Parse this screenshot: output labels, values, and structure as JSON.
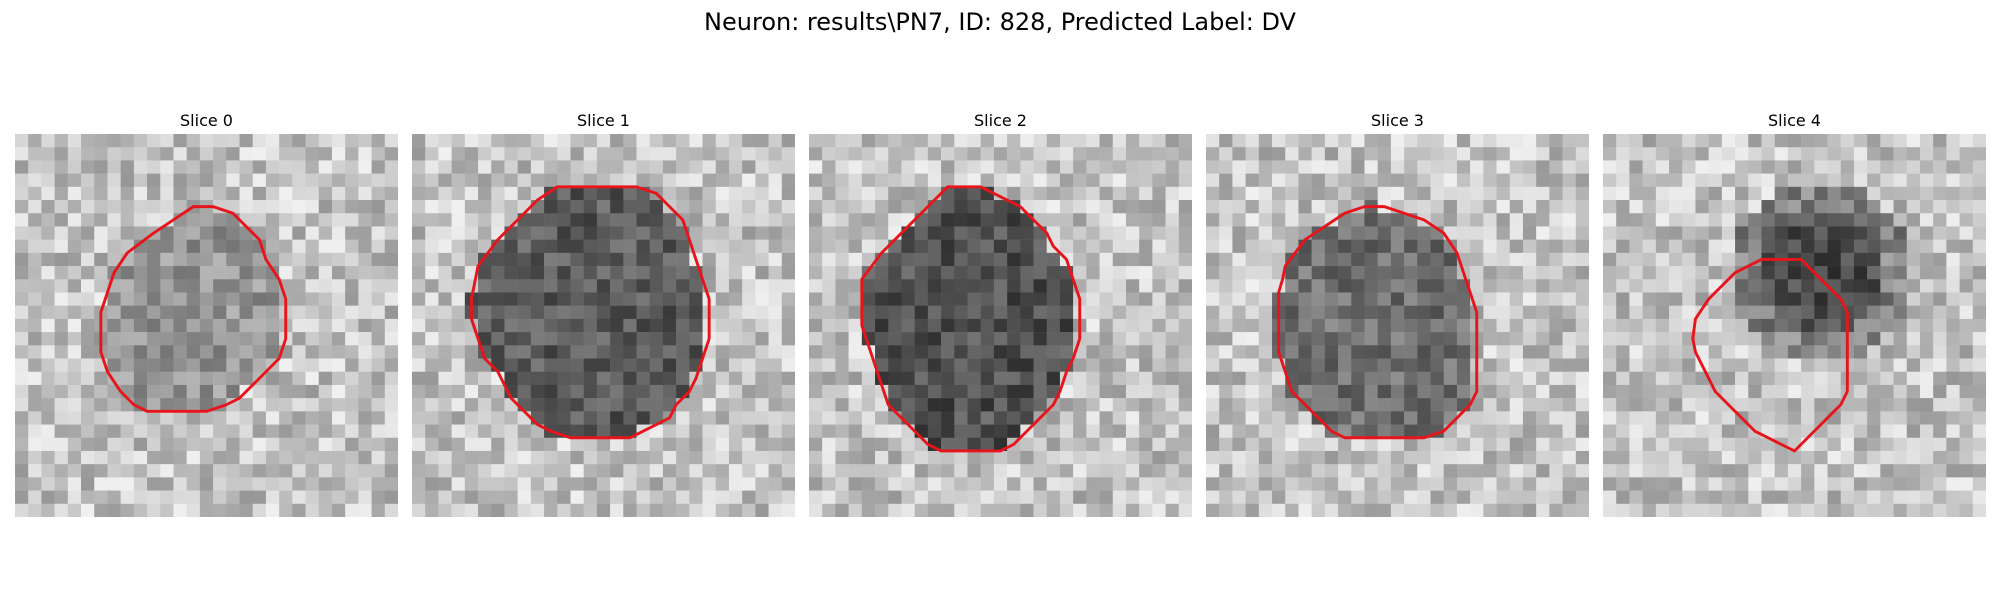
{
  "figure": {
    "title": "Neuron: results\\PN7, ID: 828, Predicted Label: DV"
  },
  "colors": {
    "contour": "#e8141c"
  },
  "panels": [
    {
      "title": "Slice 0",
      "darkness": 0.55,
      "contour": [
        [
          8.5,
          9
        ],
        [
          10.5,
          7.5
        ],
        [
          12,
          6.5
        ],
        [
          13.5,
          5.5
        ],
        [
          15,
          5.5
        ],
        [
          16.5,
          6
        ],
        [
          17.5,
          7
        ],
        [
          18.5,
          8
        ],
        [
          19,
          9.5
        ],
        [
          20,
          11
        ],
        [
          20.5,
          12.5
        ],
        [
          20.5,
          14
        ],
        [
          20.5,
          15.5
        ],
        [
          20,
          17
        ],
        [
          19,
          18
        ],
        [
          18,
          19
        ],
        [
          17,
          20
        ],
        [
          16,
          20.5
        ],
        [
          14.5,
          21
        ],
        [
          13,
          21
        ],
        [
          11.5,
          21
        ],
        [
          10,
          21
        ],
        [
          9,
          20.5
        ],
        [
          8,
          19.5
        ],
        [
          7,
          18
        ],
        [
          6.5,
          16.5
        ],
        [
          6.5,
          15
        ],
        [
          6.5,
          13.5
        ],
        [
          7,
          12
        ],
        [
          7.5,
          10.5
        ]
      ]
    },
    {
      "title": "Slice 1",
      "darkness": 0.78,
      "contour": [
        [
          5,
          10
        ],
        [
          6.5,
          8
        ],
        [
          8,
          6.5
        ],
        [
          9.5,
          5
        ],
        [
          11,
          4
        ],
        [
          13,
          4
        ],
        [
          15,
          4
        ],
        [
          17,
          4
        ],
        [
          18.5,
          4.5
        ],
        [
          19.5,
          5.5
        ],
        [
          20.5,
          6.5
        ],
        [
          21,
          8
        ],
        [
          21.5,
          9.5
        ],
        [
          22,
          11
        ],
        [
          22.5,
          12.5
        ],
        [
          22.5,
          14
        ],
        [
          22.5,
          15.5
        ],
        [
          22,
          17
        ],
        [
          21.5,
          18.5
        ],
        [
          21,
          19.5
        ],
        [
          20,
          20.5
        ],
        [
          19.5,
          21.5
        ],
        [
          18.5,
          22
        ],
        [
          17.5,
          22.5
        ],
        [
          16.5,
          23
        ],
        [
          15,
          23
        ],
        [
          13.5,
          23
        ],
        [
          12,
          23
        ],
        [
          10.5,
          22.5
        ],
        [
          9.5,
          22
        ],
        [
          8.5,
          21
        ],
        [
          7.5,
          20
        ],
        [
          7,
          19
        ],
        [
          6.5,
          18
        ],
        [
          5.5,
          17
        ],
        [
          5,
          15.5
        ],
        [
          4.5,
          14
        ],
        [
          4.5,
          12.5
        ],
        [
          4.8,
          11
        ]
      ]
    },
    {
      "title": "Slice 2",
      "darkness": 0.82,
      "contour": [
        [
          4,
          11
        ],
        [
          5.5,
          9
        ],
        [
          7,
          7.5
        ],
        [
          8.5,
          6
        ],
        [
          9.5,
          5
        ],
        [
          10.5,
          4
        ],
        [
          12,
          4
        ],
        [
          13,
          4
        ],
        [
          14,
          4.5
        ],
        [
          15,
          5
        ],
        [
          16,
          5.5
        ],
        [
          17,
          6.5
        ],
        [
          18,
          7.5
        ],
        [
          18.5,
          8.5
        ],
        [
          19.5,
          9.5
        ],
        [
          20,
          11
        ],
        [
          20.5,
          12.5
        ],
        [
          20.5,
          14
        ],
        [
          20.5,
          15.5
        ],
        [
          20,
          17
        ],
        [
          19.5,
          18
        ],
        [
          19,
          19.5
        ],
        [
          18.5,
          20.5
        ],
        [
          17.5,
          21.5
        ],
        [
          16.5,
          22.5
        ],
        [
          15.5,
          23.5
        ],
        [
          14.5,
          24
        ],
        [
          13,
          24
        ],
        [
          11.5,
          24
        ],
        [
          10,
          24
        ],
        [
          9,
          23.5
        ],
        [
          8,
          22.5
        ],
        [
          7,
          21.5
        ],
        [
          6,
          20.5
        ],
        [
          5.5,
          19
        ],
        [
          5,
          17.5
        ],
        [
          4.5,
          16
        ],
        [
          4,
          14.5
        ],
        [
          4,
          13
        ]
      ]
    },
    {
      "title": "Slice 3",
      "darkness": 0.7,
      "contour": [
        [
          6,
          10
        ],
        [
          7.5,
          8
        ],
        [
          9,
          7
        ],
        [
          10.5,
          6
        ],
        [
          12,
          5.5
        ],
        [
          13.5,
          5.5
        ],
        [
          15,
          6
        ],
        [
          16.5,
          6.5
        ],
        [
          18,
          7.5
        ],
        [
          19,
          9
        ],
        [
          19.5,
          10.5
        ],
        [
          20,
          12
        ],
        [
          20.5,
          13.5
        ],
        [
          20.5,
          15
        ],
        [
          20.5,
          16.5
        ],
        [
          20.5,
          18
        ],
        [
          20.5,
          19.5
        ],
        [
          20,
          20.5
        ],
        [
          19,
          21.5
        ],
        [
          18,
          22.5
        ],
        [
          16.5,
          23
        ],
        [
          15,
          23
        ],
        [
          13.5,
          23
        ],
        [
          12,
          23
        ],
        [
          10.5,
          23
        ],
        [
          9.5,
          22.5
        ],
        [
          8.5,
          21.5
        ],
        [
          7.5,
          20.5
        ],
        [
          6.5,
          19.5
        ],
        [
          6,
          18
        ],
        [
          5.5,
          16.5
        ],
        [
          5.5,
          15
        ],
        [
          5.5,
          13.5
        ],
        [
          5.5,
          12
        ],
        [
          5.8,
          11
        ]
      ]
    },
    {
      "title": "Slice 4",
      "darkness": 0.35,
      "contour": [
        [
          7,
          14
        ],
        [
          8,
          12.5
        ],
        [
          9,
          11.5
        ],
        [
          10,
          10.5
        ],
        [
          11,
          10
        ],
        [
          12,
          9.5
        ],
        [
          13,
          9.5
        ],
        [
          14,
          9.5
        ],
        [
          15,
          9.5
        ],
        [
          16,
          10.5
        ],
        [
          17,
          11.5
        ],
        [
          18,
          12.5
        ],
        [
          18.5,
          13.5
        ],
        [
          18.5,
          15
        ],
        [
          18.5,
          16.5
        ],
        [
          18.5,
          18
        ],
        [
          18.5,
          19.5
        ],
        [
          18,
          20.5
        ],
        [
          17,
          21.5
        ],
        [
          16,
          22.5
        ],
        [
          15.5,
          23
        ],
        [
          14.5,
          24
        ],
        [
          13.5,
          23.5
        ],
        [
          12.5,
          23
        ],
        [
          11.5,
          22.5
        ],
        [
          10.5,
          21.5
        ],
        [
          9.5,
          20.5
        ],
        [
          8.5,
          19.5
        ],
        [
          8,
          18.5
        ],
        [
          7.5,
          17.5
        ],
        [
          7,
          16.5
        ],
        [
          6.8,
          15.5
        ]
      ]
    }
  ]
}
